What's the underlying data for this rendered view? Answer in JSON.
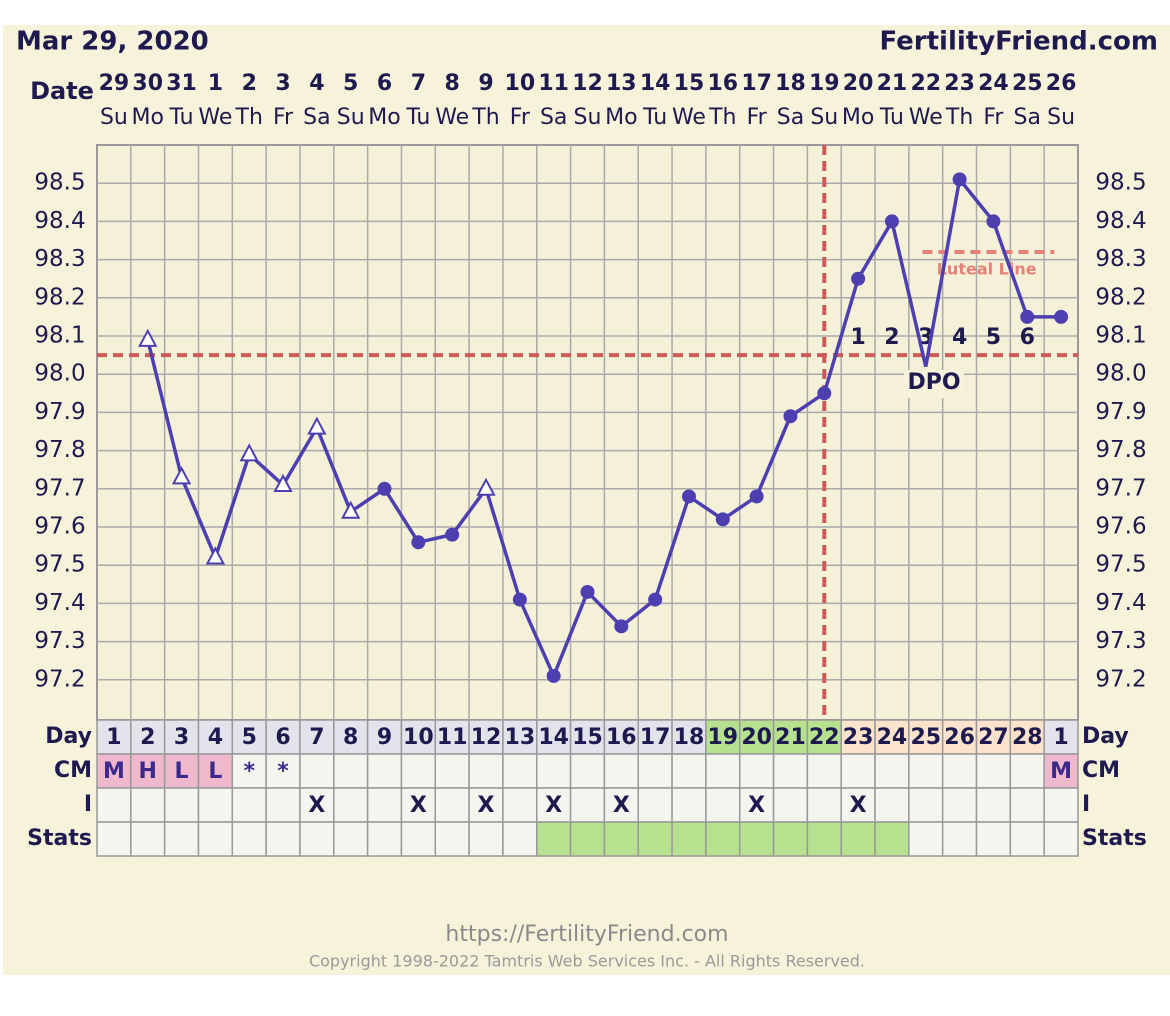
{
  "header": {
    "date": "Mar 29, 2020",
    "site": "FertilityFriend.com"
  },
  "chart_data": {
    "type": "line",
    "x_label": "Date",
    "categories": [
      "29",
      "30",
      "31",
      "1",
      "2",
      "3",
      "4",
      "5",
      "6",
      "7",
      "8",
      "9",
      "10",
      "11",
      "12",
      "13",
      "14",
      "15",
      "16",
      "17",
      "18",
      "19",
      "20",
      "21",
      "22",
      "23",
      "24",
      "25",
      "26"
    ],
    "weekdays": [
      "Su",
      "Mo",
      "Tu",
      "We",
      "Th",
      "Fr",
      "Sa",
      "Su",
      "Mo",
      "Tu",
      "We",
      "Th",
      "Fr",
      "Sa",
      "Su",
      "Mo",
      "Tu",
      "We",
      "Th",
      "Fr",
      "Sa",
      "Su",
      "Mo",
      "Tu",
      "We",
      "Th",
      "Fr",
      "Sa",
      "Su"
    ],
    "series": [
      {
        "color": "#4d3fb0",
        "values": [
          null,
          98.09,
          97.73,
          97.52,
          97.79,
          97.71,
          97.86,
          97.64,
          97.7,
          97.56,
          97.58,
          97.7,
          97.41,
          97.21,
          97.43,
          97.34,
          97.41,
          97.68,
          97.62,
          97.68,
          97.89,
          97.95,
          98.25,
          98.4,
          98.02,
          98.51,
          98.4,
          98.15,
          98.15
        ],
        "markers": [
          null,
          "triangle",
          "triangle",
          "triangle",
          "triangle",
          "triangle",
          "triangle",
          "triangle",
          "circle",
          "circle",
          "circle",
          "triangle",
          "circle",
          "circle",
          "circle",
          "circle",
          "circle",
          "circle",
          "circle",
          "circle",
          "circle",
          "circle",
          "circle",
          "circle",
          null,
          "circle",
          "circle",
          "circle",
          "circle"
        ]
      }
    ],
    "ylim": [
      97.1,
      98.6
    ],
    "yticks": [
      97.2,
      97.3,
      97.4,
      97.5,
      97.6,
      97.7,
      97.8,
      97.9,
      {
        "value": 98,
        "label": "98.0"
      },
      98.1,
      98.2,
      98.3,
      98.4,
      98.5
    ],
    "grid": true,
    "coverline": 98.05,
    "coverline_color": "#cc5a55",
    "ovulation_date": "19",
    "luteal_line": {
      "label": "Luteal Line",
      "value": 98.32,
      "color": "#e8807a"
    },
    "dpo": {
      "label": "DPO",
      "numbers": [
        1,
        2,
        3,
        4,
        5,
        6
      ]
    }
  },
  "table": {
    "rows": [
      {
        "label": "Day",
        "fill": "#e3e3eb",
        "cells": [
          1,
          2,
          3,
          4,
          5,
          6,
          7,
          8,
          9,
          10,
          11,
          12,
          13,
          14,
          15,
          16,
          17,
          18,
          19,
          20,
          21,
          22,
          23,
          24,
          25,
          26,
          27,
          28,
          1
        ],
        "fills": [
          null,
          null,
          null,
          null,
          null,
          null,
          null,
          null,
          null,
          null,
          null,
          null,
          null,
          null,
          null,
          null,
          null,
          null,
          "#b6e28f",
          "#b6e28f",
          "#b6e28f",
          "#b6e28f",
          "#fbe3cc",
          "#fbe3cc",
          "#fbe3cc",
          "#fbe3cc",
          "#fbe3cc",
          "#fbe3cc",
          null
        ]
      },
      {
        "label": "CM",
        "fill": "#f5f5f0",
        "cells": [
          "M",
          "H",
          "L",
          "L",
          "*",
          "*",
          null,
          null,
          null,
          null,
          null,
          null,
          null,
          null,
          null,
          null,
          null,
          null,
          null,
          null,
          null,
          null,
          null,
          null,
          null,
          null,
          null,
          null,
          "M"
        ],
        "fills": [
          "#efb8cc",
          "#efb8cc",
          "#efb8cc",
          "#efb8cc",
          null,
          null,
          null,
          null,
          null,
          null,
          null,
          null,
          null,
          null,
          null,
          null,
          null,
          null,
          null,
          null,
          null,
          null,
          null,
          null,
          null,
          null,
          null,
          null,
          "#efb8cc"
        ]
      },
      {
        "label": "I",
        "fill": "#f5f5f0",
        "cells": [
          null,
          null,
          null,
          null,
          null,
          null,
          "X",
          null,
          null,
          "X",
          null,
          "X",
          null,
          "X",
          null,
          "X",
          null,
          null,
          null,
          "X",
          null,
          null,
          "X",
          null,
          null,
          null,
          null,
          null,
          null
        ],
        "fills": []
      },
      {
        "label": "Stats",
        "fill": "#f5f5f0",
        "cells": [],
        "fills": [
          null,
          null,
          null,
          null,
          null,
          null,
          null,
          null,
          null,
          null,
          null,
          null,
          null,
          "#b6e28f",
          "#b6e28f",
          "#b6e28f",
          "#b6e28f",
          "#b6e28f",
          "#b6e28f",
          "#b6e28f",
          "#b6e28f",
          "#b6e28f",
          "#b6e28f",
          "#b6e28f",
          null,
          null,
          null,
          null,
          null
        ]
      }
    ]
  },
  "footer": {
    "url": "https://FertilityFriend.com",
    "copyright": "Copyright 1998-2022 Tamtris Web Services Inc. - All Rights Reserved."
  }
}
